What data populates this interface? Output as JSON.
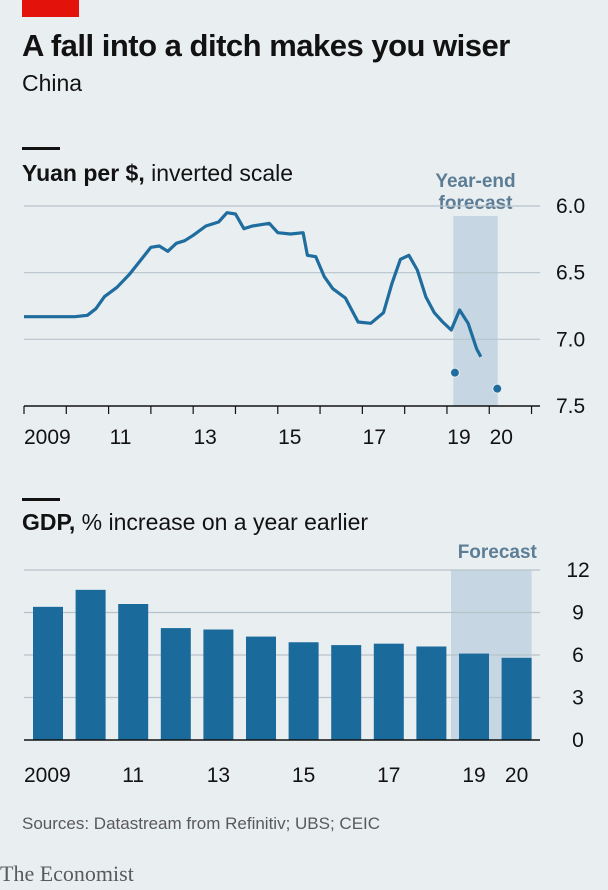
{
  "header": {
    "title": "A fall into a ditch makes you wiser",
    "subtitle": "China"
  },
  "chart_data": [
    {
      "type": "line",
      "title_bold": "Yuan per $,",
      "title_rest": " inverted scale",
      "inverted_y": true,
      "ylim": [
        6.0,
        7.5
      ],
      "yticks": [
        6.0,
        6.5,
        7.0,
        7.5
      ],
      "ytick_labels": [
        "6.0",
        "6.5",
        "7.0",
        "7.5"
      ],
      "xlim": [
        2009.0,
        2021.2
      ],
      "xtick_labels": [
        "2009",
        "11",
        "13",
        "15",
        "17",
        "19",
        "20"
      ],
      "xtick_values": [
        2009,
        2011,
        2013,
        2015,
        2017,
        2019,
        2020
      ],
      "forecast_label_lines": [
        "Year-end",
        "forecast"
      ],
      "forecast_band": [
        2019.15,
        2020.2
      ],
      "colors": {
        "line": "#1f6d9e",
        "band": "#c6d6e2",
        "grid": "#b7c3cb"
      },
      "series": [
        {
          "x": [
            2009.0,
            2009.4,
            2009.8,
            2010.2,
            2010.5,
            2010.7,
            2010.9,
            2011.2,
            2011.5,
            2011.8,
            2012.0,
            2012.2,
            2012.4,
            2012.6,
            2012.8,
            2013.0,
            2013.3,
            2013.6,
            2013.8,
            2014.0,
            2014.2,
            2014.4,
            2014.6,
            2014.8,
            2015.0,
            2015.3,
            2015.6,
            2015.7,
            2015.9,
            2016.1,
            2016.3,
            2016.6,
            2016.9,
            2017.2,
            2017.5,
            2017.7,
            2017.9,
            2018.1,
            2018.3,
            2018.5,
            2018.7,
            2018.9,
            2019.1,
            2019.3,
            2019.5,
            2019.7,
            2019.8
          ],
          "y": [
            6.83,
            6.83,
            6.83,
            6.83,
            6.82,
            6.77,
            6.68,
            6.61,
            6.51,
            6.39,
            6.31,
            6.3,
            6.34,
            6.28,
            6.26,
            6.22,
            6.15,
            6.12,
            6.05,
            6.06,
            6.17,
            6.15,
            6.14,
            6.13,
            6.2,
            6.21,
            6.2,
            6.37,
            6.38,
            6.53,
            6.62,
            6.69,
            6.87,
            6.88,
            6.8,
            6.58,
            6.4,
            6.37,
            6.48,
            6.68,
            6.8,
            6.87,
            6.93,
            6.78,
            6.88,
            7.07,
            7.13
          ]
        }
      ],
      "forecast_points": [
        {
          "x": 2019.0,
          "y": 7.25
        },
        {
          "x": 2020.0,
          "y": 7.37
        }
      ]
    },
    {
      "type": "bar",
      "title_bold": "GDP,",
      "title_rest": " % increase on a year earlier",
      "ylim": [
        0,
        12
      ],
      "yticks": [
        0,
        3,
        6,
        9,
        12
      ],
      "ytick_labels": [
        "0",
        "3",
        "6",
        "9",
        "12"
      ],
      "forecast_label": "Forecast",
      "forecast_from_index": 10,
      "categories": [
        "2009",
        "2010",
        "2011",
        "2012",
        "2013",
        "2014",
        "2015",
        "2016",
        "2017",
        "2018",
        "2019",
        "2020"
      ],
      "xtick_labels": [
        "2009",
        "",
        "11",
        "",
        "13",
        "",
        "15",
        "",
        "17",
        "",
        "19",
        "20"
      ],
      "values": [
        9.4,
        10.6,
        9.6,
        7.9,
        7.8,
        7.3,
        6.9,
        6.7,
        6.8,
        6.6,
        6.1,
        5.8
      ],
      "colors": {
        "bar": "#1a6b9c",
        "band": "#c6d6e2",
        "grid": "#b7c3cb"
      }
    }
  ],
  "footer": {
    "source": "Sources: Datastream from Refinitiv; UBS; CEIC",
    "logo": "The Economist"
  }
}
